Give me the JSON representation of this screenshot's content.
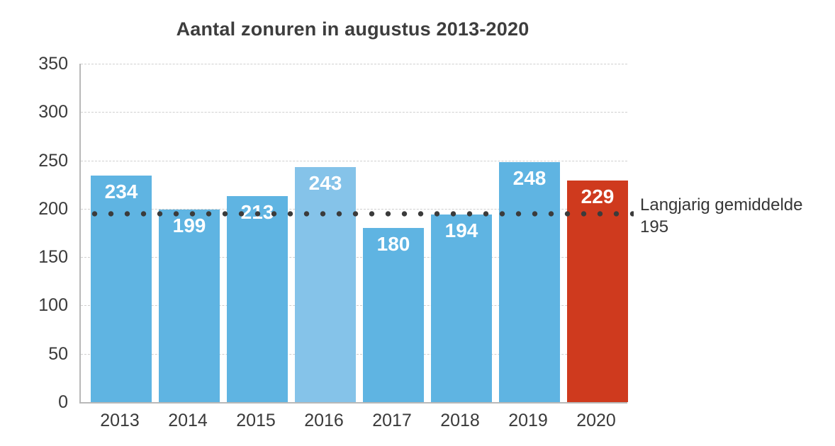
{
  "chart_data": {
    "type": "bar",
    "title": "Aantal zonuren in augustus 2013-2020",
    "categories": [
      "2013",
      "2014",
      "2015",
      "2016",
      "2017",
      "2018",
      "2019",
      "2020"
    ],
    "values": [
      234,
      199,
      213,
      243,
      180,
      194,
      248,
      229
    ],
    "bar_colors": [
      "#5fb4e2",
      "#5fb4e2",
      "#5fb4e2",
      "#85c3e9",
      "#5fb4e2",
      "#5fb4e2",
      "#5fb4e2",
      "#cf3a1e"
    ],
    "value_label_color": "#ffffff",
    "xlabel": "",
    "ylabel": "",
    "ylim": [
      0,
      350
    ],
    "yticks": [
      0,
      50,
      100,
      150,
      200,
      250,
      300,
      350
    ],
    "grid": "horizontal-dashed",
    "legend_position": "none",
    "average_line": {
      "value": 195,
      "label": "Langjarig gemiddelde",
      "value_label": "195",
      "style": "dotted",
      "color": "#3b3b3b"
    }
  },
  "colors": {
    "background": "#ffffff",
    "axis": "#b8b8b8",
    "gridline": "#cfcfcf",
    "title_text": "#3d3d3d",
    "tick_text": "#3a3a3a",
    "annotation_text": "#363636",
    "bar_blue": "#5fb4e2",
    "bar_light_blue": "#85c3e9",
    "bar_red": "#cf3a1e"
  }
}
